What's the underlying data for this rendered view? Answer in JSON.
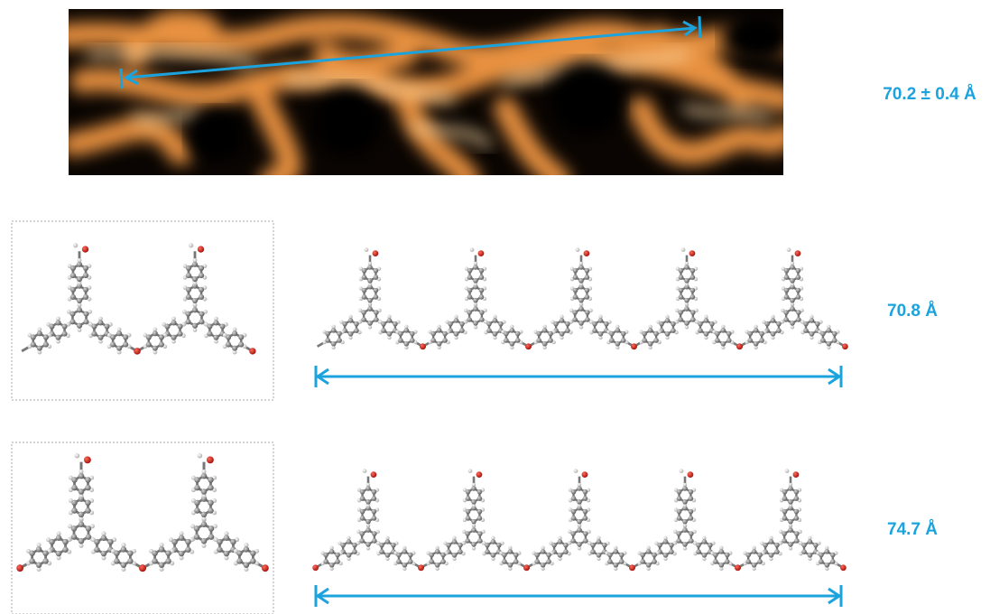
{
  "rows": [
    {
      "measurement": "70.2 ± 0.4 Å"
    },
    {
      "measurement": "70.8 Å"
    },
    {
      "measurement": "74.7 Å"
    }
  ]
}
